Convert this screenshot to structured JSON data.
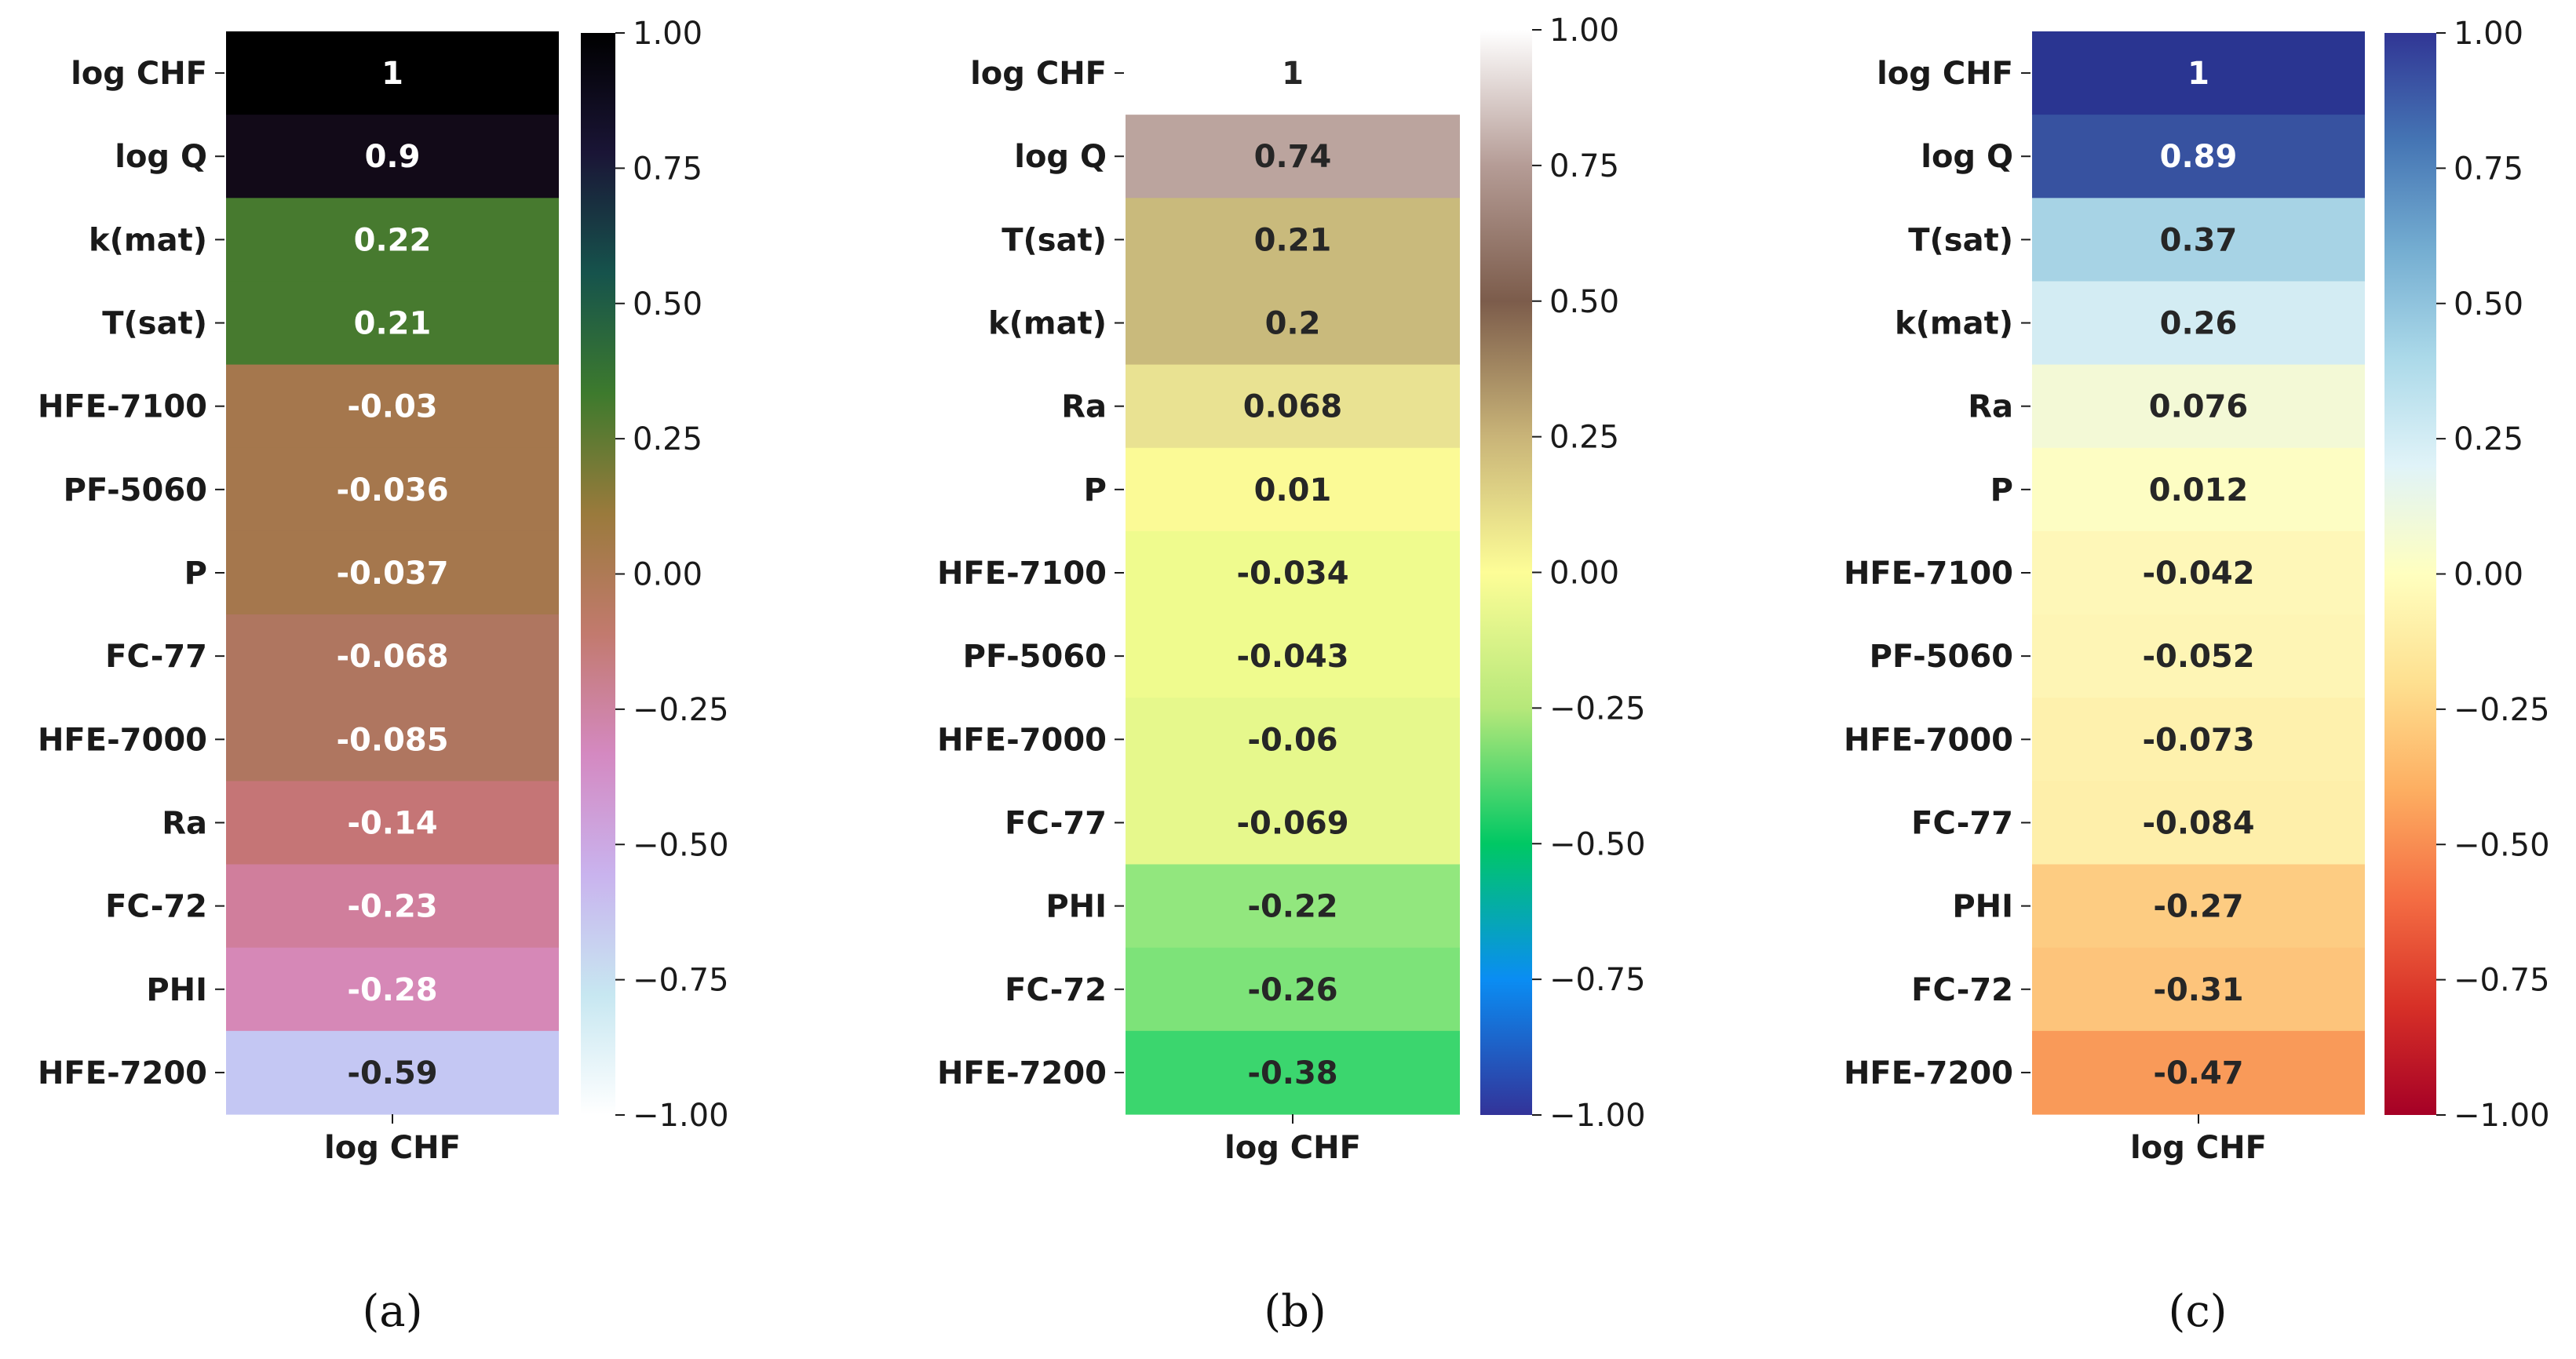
{
  "figure": {
    "background": "#ffffff",
    "text_color": "#1a1a1a"
  },
  "chart_data": [
    {
      "type": "heatmap",
      "panel": "a",
      "caption": "(a)",
      "column_label": "log CHF",
      "colormap": "cubehelix-like",
      "vmin": -1.0,
      "vmax": 1.0,
      "colorbar_ticks": [
        "1.00",
        "0.75",
        "0.50",
        "0.25",
        "0.00",
        "−0.25",
        "−0.50",
        "−0.75",
        "−1.00"
      ],
      "colorbar_stops": [
        "#000000",
        "#1a1536",
        "#16534c",
        "#3d7a2d",
        "#9a7a3c",
        "#c27a6e",
        "#d489c1",
        "#c9b3ee",
        "#c7e7f1",
        "#ffffff"
      ],
      "rows": [
        {
          "label": "log CHF",
          "value": 1,
          "text": "1",
          "color": "#000000",
          "text_color": "#ffffff"
        },
        {
          "label": "log Q",
          "value": 0.9,
          "text": "0.9",
          "color": "#120a18",
          "text_color": "#ffffff"
        },
        {
          "label": "k(mat)",
          "value": 0.22,
          "text": "0.22",
          "color": "#477a2f",
          "text_color": "#ffffff"
        },
        {
          "label": "T(sat)",
          "value": 0.21,
          "text": "0.21",
          "color": "#477a2f",
          "text_color": "#ffffff"
        },
        {
          "label": "HFE-7100",
          "value": -0.03,
          "text": "-0.03",
          "color": "#a5774d",
          "text_color": "#ffffff"
        },
        {
          "label": "PF-5060",
          "value": -0.036,
          "text": "-0.036",
          "color": "#a5774d",
          "text_color": "#ffffff"
        },
        {
          "label": "P",
          "value": -0.037,
          "text": "-0.037",
          "color": "#a5774d",
          "text_color": "#ffffff"
        },
        {
          "label": "FC-77",
          "value": -0.068,
          "text": "-0.068",
          "color": "#af7660",
          "text_color": "#ffffff"
        },
        {
          "label": "HFE-7000",
          "value": -0.085,
          "text": "-0.085",
          "color": "#af7660",
          "text_color": "#ffffff"
        },
        {
          "label": "Ra",
          "value": -0.14,
          "text": "-0.14",
          "color": "#c57576",
          "text_color": "#ffffff"
        },
        {
          "label": "FC-72",
          "value": -0.23,
          "text": "-0.23",
          "color": "#d07e9c",
          "text_color": "#ffffff"
        },
        {
          "label": "PHI",
          "value": -0.28,
          "text": "-0.28",
          "color": "#d688b7",
          "text_color": "#ffffff"
        },
        {
          "label": "HFE-7200",
          "value": -0.59,
          "text": "-0.59",
          "color": "#c4c7f3",
          "text_color": "#262626"
        }
      ]
    },
    {
      "type": "heatmap",
      "panel": "b",
      "caption": "(b)",
      "column_label": "log CHF",
      "colormap": "terrain",
      "vmin": -1.0,
      "vmax": 1.0,
      "colorbar_ticks": [
        "1.00",
        "0.75",
        "0.50",
        "0.25",
        "0.00",
        "−0.25",
        "−0.50",
        "−0.75",
        "−1.00"
      ],
      "colorbar_stops": [
        "#ffffff",
        "#b59c96",
        "#7c5c4b",
        "#c9b478",
        "#fdfd97",
        "#b6e87a",
        "#00c864",
        "#0a8df3",
        "#333399"
      ],
      "rows": [
        {
          "label": "log CHF",
          "value": 1,
          "text": "1",
          "color": "#ffffff",
          "text_color": "#262626"
        },
        {
          "label": "log Q",
          "value": 0.74,
          "text": "0.74",
          "color": "#bba49e",
          "text_color": "#262626"
        },
        {
          "label": "T(sat)",
          "value": 0.21,
          "text": "0.21",
          "color": "#c9ba7c",
          "text_color": "#262626"
        },
        {
          "label": "k(mat)",
          "value": 0.2,
          "text": "0.2",
          "color": "#c9ba7c",
          "text_color": "#262626"
        },
        {
          "label": "Ra",
          "value": 0.068,
          "text": "0.068",
          "color": "#e9e292",
          "text_color": "#262626"
        },
        {
          "label": "P",
          "value": 0.01,
          "text": "0.01",
          "color": "#fbfa96",
          "text_color": "#262626"
        },
        {
          "label": "HFE-7100",
          "value": -0.034,
          "text": "-0.034",
          "color": "#effb8e",
          "text_color": "#262626"
        },
        {
          "label": "PF-5060",
          "value": -0.043,
          "text": "-0.043",
          "color": "#effb8e",
          "text_color": "#262626"
        },
        {
          "label": "HFE-7000",
          "value": -0.06,
          "text": "-0.06",
          "color": "#e6f88c",
          "text_color": "#262626"
        },
        {
          "label": "FC-77",
          "value": -0.069,
          "text": "-0.069",
          "color": "#e6f88c",
          "text_color": "#262626"
        },
        {
          "label": "PHI",
          "value": -0.22,
          "text": "-0.22",
          "color": "#92e77e",
          "text_color": "#262626"
        },
        {
          "label": "FC-72",
          "value": -0.26,
          "text": "-0.26",
          "color": "#7de379",
          "text_color": "#262626"
        },
        {
          "label": "HFE-7200",
          "value": -0.38,
          "text": "-0.38",
          "color": "#3bd66e",
          "text_color": "#262626"
        }
      ]
    },
    {
      "type": "heatmap",
      "panel": "c",
      "caption": "(c)",
      "column_label": "log CHF",
      "colormap": "RdYlBu",
      "vmin": -1.0,
      "vmax": 1.0,
      "colorbar_ticks": [
        "1.00",
        "0.75",
        "0.50",
        "0.25",
        "0.00",
        "−0.25",
        "−0.50",
        "−0.75",
        "−1.00"
      ],
      "colorbar_stops": [
        "#313695",
        "#4575b4",
        "#74add1",
        "#abd9e9",
        "#e0f3f8",
        "#ffffbf",
        "#fee090",
        "#fdae61",
        "#f46d43",
        "#d73027",
        "#a50026"
      ],
      "rows": [
        {
          "label": "log CHF",
          "value": 1,
          "text": "1",
          "color": "#2a3591",
          "text_color": "#ffffff"
        },
        {
          "label": "log Q",
          "value": 0.89,
          "text": "0.89",
          "color": "#3752a0",
          "text_color": "#ffffff"
        },
        {
          "label": "T(sat)",
          "value": 0.37,
          "text": "0.37",
          "color": "#a7d3e5",
          "text_color": "#262626"
        },
        {
          "label": "k(mat)",
          "value": 0.26,
          "text": "0.26",
          "color": "#d3ecf3",
          "text_color": "#262626"
        },
        {
          "label": "Ra",
          "value": 0.076,
          "text": "0.076",
          "color": "#f3f9d6",
          "text_color": "#262626"
        },
        {
          "label": "P",
          "value": 0.012,
          "text": "0.012",
          "color": "#fdfdc3",
          "text_color": "#262626"
        },
        {
          "label": "HFE-7100",
          "value": -0.042,
          "text": "-0.042",
          "color": "#fef7b8",
          "text_color": "#262626"
        },
        {
          "label": "PF-5060",
          "value": -0.052,
          "text": "-0.052",
          "color": "#fef5b5",
          "text_color": "#262626"
        },
        {
          "label": "HFE-7000",
          "value": -0.073,
          "text": "-0.073",
          "color": "#fef1ad",
          "text_color": "#262626"
        },
        {
          "label": "FC-77",
          "value": -0.084,
          "text": "-0.084",
          "color": "#feefaa",
          "text_color": "#262626"
        },
        {
          "label": "PHI",
          "value": -0.27,
          "text": "-0.27",
          "color": "#fdcc82",
          "text_color": "#262626"
        },
        {
          "label": "FC-72",
          "value": -0.31,
          "text": "-0.31",
          "color": "#fdc47b",
          "text_color": "#262626"
        },
        {
          "label": "HFE-7200",
          "value": -0.47,
          "text": "-0.47",
          "color": "#f99a59",
          "text_color": "#262626"
        }
      ]
    }
  ]
}
